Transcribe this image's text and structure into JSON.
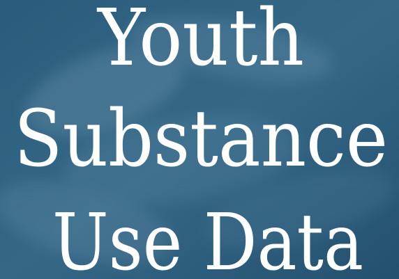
{
  "title_lines": [
    "Youth",
    "Substance",
    "Use Data"
  ]
}
